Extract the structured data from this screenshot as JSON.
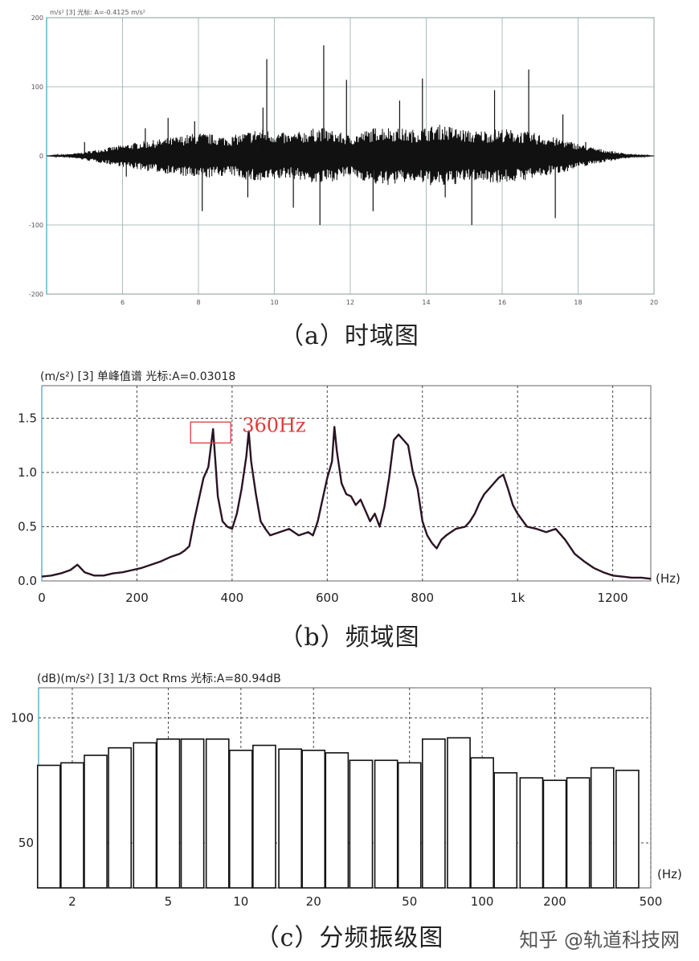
{
  "captions": {
    "a": "（a）时域图",
    "b": "（b）频域图",
    "c": "（c）分频振级图"
  },
  "watermark": "知乎 @轨道科技网",
  "colors": {
    "signal": "#111111",
    "spectrum": "#2a1424",
    "annotation": "#e23a3a",
    "axis_accent": "#3aa0c8"
  },
  "chart_data": [
    {
      "type": "line",
      "title": "",
      "header": "m/s² [3] 光标: A=-0.4125 m/s²",
      "xlabel": "",
      "ylabel": "",
      "xlim": [
        4,
        20
      ],
      "ylim": [
        -200,
        200
      ],
      "x_ticks": [
        6,
        8,
        10,
        12,
        14,
        16,
        18,
        20
      ],
      "y_ticks": [
        200,
        100,
        0,
        -100,
        -200
      ],
      "grid": true,
      "envelope": {
        "x": [
          4.0,
          4.8,
          5.6,
          6.4,
          7.2,
          8.0,
          8.8,
          9.6,
          10.4,
          11.2,
          12.0,
          12.8,
          13.6,
          14.4,
          15.2,
          16.0,
          16.8,
          17.6,
          18.4,
          19.2,
          20.0
        ],
        "amplitude": [
          0,
          4,
          12,
          20,
          26,
          34,
          28,
          40,
          32,
          42,
          30,
          44,
          38,
          46,
          36,
          40,
          34,
          24,
          12,
          4,
          0
        ]
      },
      "spikes": [
        {
          "x": 5.0,
          "y": 20
        },
        {
          "x": 6.1,
          "y": -30
        },
        {
          "x": 6.6,
          "y": 40
        },
        {
          "x": 7.2,
          "y": 55
        },
        {
          "x": 7.9,
          "y": 50
        },
        {
          "x": 8.1,
          "y": -80
        },
        {
          "x": 9.3,
          "y": -60
        },
        {
          "x": 9.7,
          "y": 70
        },
        {
          "x": 9.8,
          "y": 140
        },
        {
          "x": 10.5,
          "y": -75
        },
        {
          "x": 11.2,
          "y": -100
        },
        {
          "x": 11.3,
          "y": 160
        },
        {
          "x": 11.9,
          "y": 110
        },
        {
          "x": 12.6,
          "y": -80
        },
        {
          "x": 13.3,
          "y": 80
        },
        {
          "x": 13.9,
          "y": 112
        },
        {
          "x": 14.5,
          "y": -60
        },
        {
          "x": 15.2,
          "y": -100
        },
        {
          "x": 15.8,
          "y": 95
        },
        {
          "x": 16.7,
          "y": 125
        },
        {
          "x": 17.4,
          "y": -90
        },
        {
          "x": 17.6,
          "y": 60
        },
        {
          "x": 18.2,
          "y": 20
        }
      ]
    },
    {
      "type": "line",
      "title": "",
      "header": "(m/s²) [3] 单峰值谱 光标:A=0.03018",
      "xlabel": "(Hz)",
      "ylabel": "",
      "xlim": [
        0,
        1280
      ],
      "ylim": [
        0,
        1.8
      ],
      "x_ticks": [
        "0",
        "200",
        "400",
        "600",
        "800",
        "1k",
        "1200"
      ],
      "x_tick_values": [
        0,
        200,
        400,
        600,
        800,
        1000,
        1200
      ],
      "y_ticks": [
        "0.0",
        "0.5",
        "1.0",
        "1.5"
      ],
      "y_tick_values": [
        0,
        0.5,
        1.0,
        1.5
      ],
      "grid": true,
      "annotation": {
        "text": "360Hz",
        "x": 360,
        "y": 1.45
      },
      "series": [
        {
          "x": [
            0,
            20,
            40,
            60,
            75,
            90,
            110,
            130,
            150,
            170,
            190,
            210,
            230,
            250,
            270,
            290,
            300,
            310,
            320,
            330,
            340,
            350,
            360,
            365,
            370,
            380,
            390,
            400,
            410,
            420,
            430,
            435,
            440,
            450,
            460,
            470,
            480,
            500,
            520,
            540,
            560,
            570,
            580,
            590,
            600,
            610,
            615,
            620,
            630,
            640,
            650,
            660,
            670,
            680,
            690,
            700,
            710,
            720,
            730,
            740,
            750,
            760,
            770,
            780,
            790,
            800,
            810,
            820,
            830,
            840,
            850,
            870,
            890,
            900,
            910,
            920,
            930,
            940,
            950,
            960,
            970,
            980,
            990,
            1000,
            1020,
            1040,
            1060,
            1080,
            1100,
            1120,
            1140,
            1160,
            1180,
            1200,
            1220,
            1240,
            1260,
            1280
          ],
          "values": [
            0.04,
            0.05,
            0.07,
            0.1,
            0.15,
            0.08,
            0.05,
            0.05,
            0.07,
            0.08,
            0.1,
            0.12,
            0.15,
            0.18,
            0.22,
            0.25,
            0.28,
            0.32,
            0.55,
            0.75,
            0.95,
            1.05,
            1.4,
            1.1,
            0.78,
            0.55,
            0.5,
            0.48,
            0.62,
            0.85,
            1.15,
            1.38,
            1.1,
            0.8,
            0.55,
            0.48,
            0.42,
            0.45,
            0.48,
            0.42,
            0.45,
            0.42,
            0.55,
            0.75,
            0.95,
            1.1,
            1.42,
            1.2,
            0.9,
            0.8,
            0.78,
            0.7,
            0.75,
            0.65,
            0.55,
            0.62,
            0.5,
            0.68,
            0.95,
            1.3,
            1.35,
            1.3,
            1.25,
            1.0,
            0.85,
            0.55,
            0.42,
            0.35,
            0.3,
            0.38,
            0.42,
            0.48,
            0.5,
            0.55,
            0.62,
            0.72,
            0.8,
            0.85,
            0.9,
            0.95,
            0.98,
            0.85,
            0.7,
            0.62,
            0.5,
            0.48,
            0.45,
            0.48,
            0.38,
            0.25,
            0.18,
            0.12,
            0.08,
            0.05,
            0.04,
            0.03,
            0.03,
            0.02
          ]
        }
      ]
    },
    {
      "type": "bar",
      "title": "",
      "header": "(dB)(m/s²) [3] 1/3 Oct Rms 光标:A=80.94dB",
      "xlabel": "(Hz)",
      "ylabel": "",
      "scale": "log",
      "ylim": [
        32,
        112
      ],
      "x_ticks": [
        "2",
        "5",
        "10",
        "20",
        "50",
        "100",
        "200",
        "500"
      ],
      "x_tick_values": [
        2,
        5,
        10,
        20,
        50,
        100,
        200,
        500
      ],
      "y_ticks": [
        "100",
        "50"
      ],
      "y_tick_values": [
        100,
        50
      ],
      "grid": true,
      "categories": [
        1.6,
        2,
        2.5,
        3.15,
        4,
        5,
        6.3,
        8,
        10,
        12.5,
        16,
        20,
        25,
        31.5,
        40,
        50,
        63,
        80,
        100,
        125,
        160,
        200,
        250,
        315,
        400
      ],
      "values": [
        81,
        82,
        85,
        88,
        90,
        91.5,
        91.5,
        91.5,
        87,
        89,
        87.5,
        87,
        86,
        83,
        83,
        82,
        91.5,
        92,
        84,
        78,
        76,
        75,
        76,
        80,
        79
      ]
    }
  ]
}
